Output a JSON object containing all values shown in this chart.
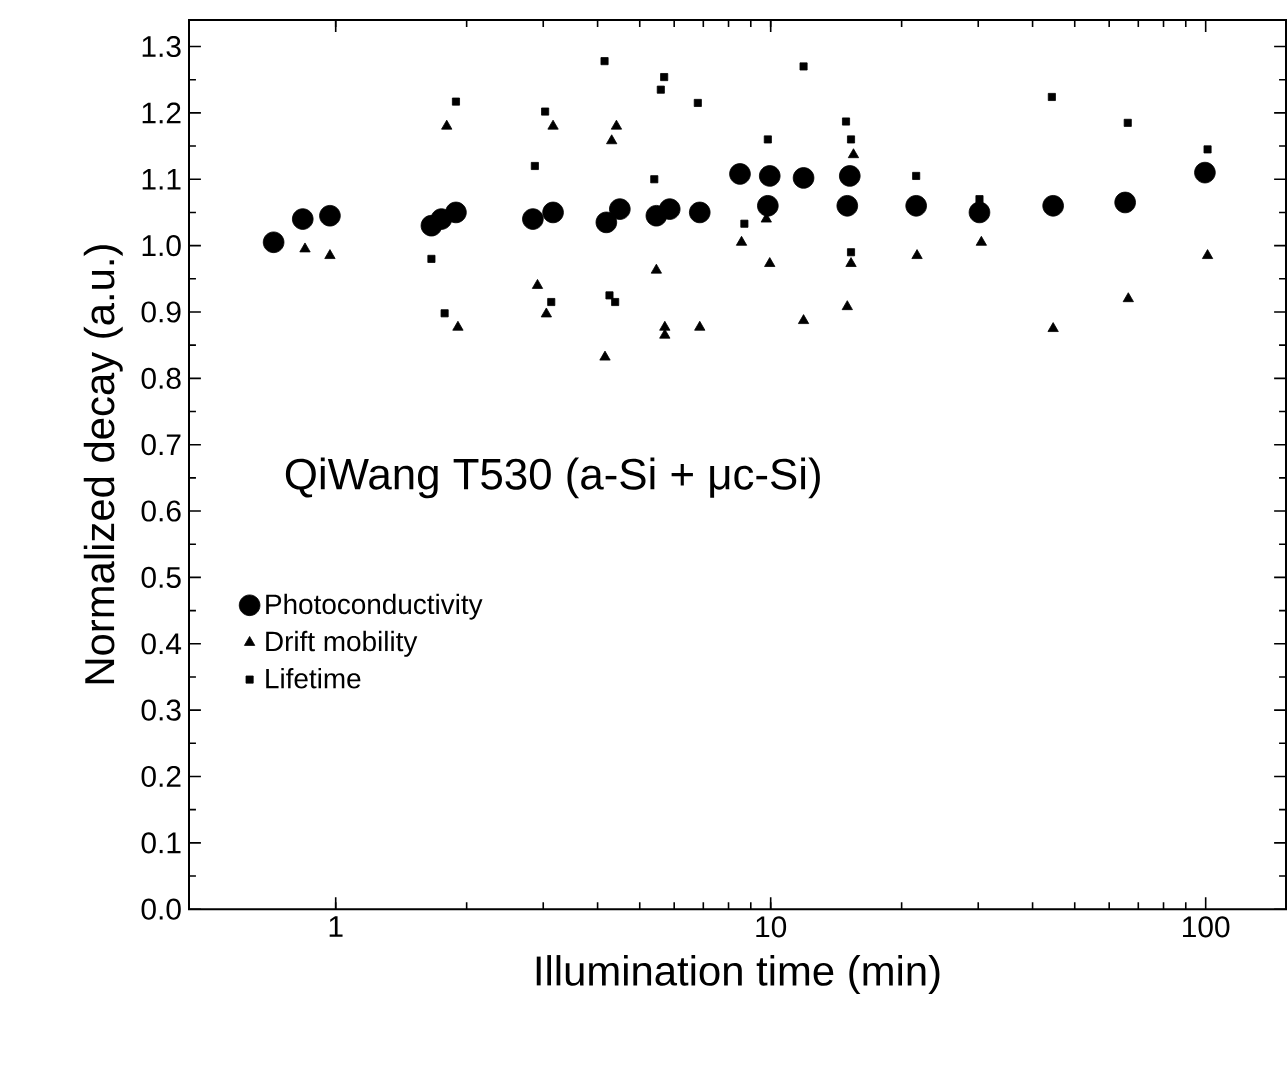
{
  "chart_data": {
    "type": "scatter",
    "xlabel": "Illumination time (min)",
    "ylabel": "Normalized decay (a.u.)",
    "annotations": [
      "QiWang T530 (a-Si + μc-Si)"
    ],
    "log": "x",
    "legend": "left",
    "grid": false,
    "xlim": [
      0.46,
      153
    ],
    "xticks": [
      1,
      10,
      100
    ],
    "ylim": [
      0,
      1.34
    ],
    "yticks": [
      {
        "value": 0,
        "label": "0.0"
      },
      0.1,
      0.2,
      0.3,
      0.4,
      0.5,
      0.6,
      0.7,
      0.8,
      0.9,
      {
        "value": 1,
        "label": "1.0"
      },
      1.1,
      1.2,
      1.3
    ],
    "series": [
      {
        "name": "Photoconductivity",
        "color": "#000000",
        "marker": "circle",
        "x": [
          0.72,
          0.84,
          0.97,
          1.66,
          1.75,
          1.89,
          2.84,
          3.16,
          4.19,
          4.5,
          5.46,
          5.86,
          6.87,
          8.5,
          9.85,
          9.95,
          11.9,
          15.0,
          15.2,
          21.6,
          30.2,
          44.6,
          65.3,
          99.6
        ],
        "values": [
          1.005,
          1.04,
          1.045,
          1.03,
          1.04,
          1.05,
          1.04,
          1.05,
          1.035,
          1.055,
          1.045,
          1.055,
          1.05,
          1.108,
          1.06,
          1.105,
          1.102,
          1.06,
          1.105,
          1.06,
          1.05,
          1.06,
          1.065,
          1.11
        ]
      },
      {
        "name": "Drift mobility",
        "color": "#000000",
        "marker": "triangle",
        "x": [
          0.85,
          0.97,
          1.8,
          1.91,
          2.91,
          3.05,
          3.16,
          4.16,
          4.31,
          4.42,
          5.46,
          5.71,
          5.71,
          6.87,
          8.57,
          9.77,
          9.95,
          11.9,
          15.0,
          15.3,
          15.5,
          21.7,
          30.5,
          44.6,
          66.4,
          101
        ],
        "values": [
          0.995,
          0.985,
          1.18,
          0.877,
          0.94,
          0.897,
          1.18,
          0.832,
          1.158,
          1.18,
          0.963,
          0.877,
          0.865,
          0.877,
          1.005,
          1.04,
          0.973,
          0.887,
          0.908,
          0.973,
          1.137,
          0.985,
          1.005,
          0.875,
          0.92,
          0.985
        ]
      },
      {
        "name": "Lifetime",
        "color": "#000000",
        "marker": "square",
        "x": [
          1.66,
          1.78,
          1.89,
          2.87,
          3.03,
          3.13,
          4.15,
          4.26,
          4.39,
          5.4,
          5.59,
          5.69,
          6.8,
          8.7,
          9.85,
          11.9,
          14.9,
          15.3,
          15.3,
          21.6,
          30.2,
          44.3,
          66.2,
          101
        ],
        "values": [
          0.98,
          0.898,
          1.217,
          1.12,
          1.202,
          0.915,
          1.278,
          0.925,
          0.915,
          1.1,
          1.235,
          1.254,
          1.215,
          1.033,
          1.16,
          1.27,
          1.187,
          1.16,
          0.99,
          1.105,
          1.07,
          1.224,
          1.185,
          1.145
        ]
      }
    ]
  }
}
